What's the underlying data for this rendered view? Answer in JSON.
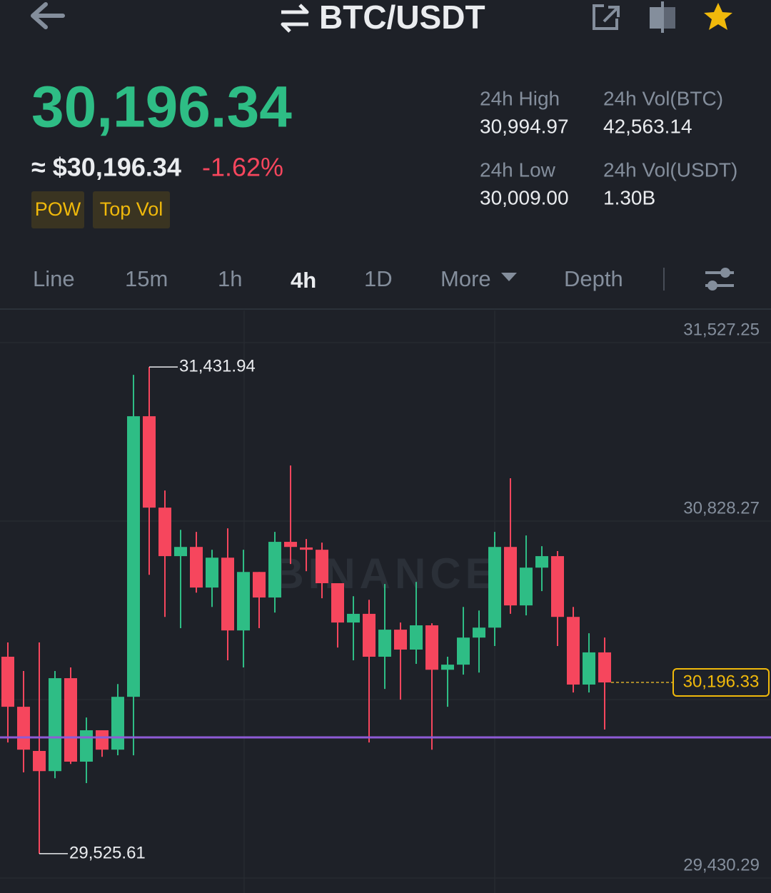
{
  "header": {
    "title": "BTC/USDT"
  },
  "price": {
    "last": "30,196.34",
    "fiat": "≈ $30,196.34",
    "change": "-1.62%"
  },
  "tags": [
    "POW",
    "Top Vol"
  ],
  "stats": [
    {
      "label": "24h High",
      "value": "30,994.97"
    },
    {
      "label": "24h Vol(BTC)",
      "value": "42,563.14"
    },
    {
      "label": "24h Low",
      "value": "30,009.00"
    },
    {
      "label": "24h Vol(USDT)",
      "value": "1.30B"
    }
  ],
  "tabs": [
    "Line",
    "15m",
    "1h",
    "4h",
    "1D",
    "More",
    "Depth"
  ],
  "watermark": "BINANCE",
  "chart_data": {
    "type": "candlestick",
    "up_color": "#2ebd85",
    "down_color": "#f6465d",
    "open": [
      30297,
      30101,
      29928,
      29849,
      30213,
      29886,
      30009,
      29933,
      30140,
      31239,
      30881,
      30691,
      30727,
      30568,
      30685,
      30400,
      30629,
      30529,
      30747,
      30725,
      30716,
      30585,
      30431,
      30465,
      30297,
      30403,
      30325,
      30420,
      30246,
      30266,
      30372,
      30411,
      30727,
      30498,
      30646,
      30691,
      30453,
      30188,
      30314
    ],
    "high": [
      30353,
      30241,
      30353,
      30241,
      30255,
      30059,
      30009,
      30190,
      31401,
      31431.94,
      30948,
      30794,
      30786,
      30716,
      30800,
      30716,
      30629,
      30786,
      31046,
      30758,
      30744,
      30585,
      30534,
      30520,
      30582,
      30431,
      30590,
      30428,
      30297,
      30492,
      30478,
      30786,
      30996,
      30772,
      30730,
      30711,
      30492,
      30389,
      30372
    ],
    "low": [
      29961,
      29844,
      29525.61,
      29821,
      29877,
      29802,
      29905,
      29911,
      29911,
      30618,
      30453,
      30409,
      30548,
      30492,
      30283,
      30255,
      30409,
      30470,
      30660,
      30632,
      30526,
      30333,
      30283,
      29961,
      30171,
      30129,
      30269,
      29933,
      30101,
      30227,
      30235,
      30339,
      30465,
      30459,
      30554,
      30339,
      30157,
      30157,
      30012
    ],
    "close": [
      30101,
      29933,
      29849,
      30213,
      29886,
      30009,
      29933,
      30140,
      31239,
      30881,
      30691,
      30727,
      30568,
      30685,
      30400,
      30629,
      30529,
      30747,
      30727,
      30716,
      30585,
      30431,
      30465,
      30297,
      30403,
      30325,
      30420,
      30246,
      30266,
      30372,
      30411,
      30727,
      30498,
      30646,
      30691,
      30453,
      30188,
      30314,
      30196.33
    ],
    "ylim": [
      29430.29,
      31527.25
    ],
    "yticks": [
      {
        "value": 31527.25,
        "label": "31,527.25"
      },
      {
        "value": 30828.27,
        "label": "30,828.27"
      },
      {
        "value": 29430.29,
        "label": "29,430.29"
      }
    ],
    "high_label": {
      "value": 31431.94,
      "label": "31,431.94"
    },
    "low_label": {
      "value": 29525.61,
      "label": "29,525.61"
    },
    "last_price": {
      "value": 30196.33,
      "label": "30,196.33"
    },
    "grid": true
  }
}
